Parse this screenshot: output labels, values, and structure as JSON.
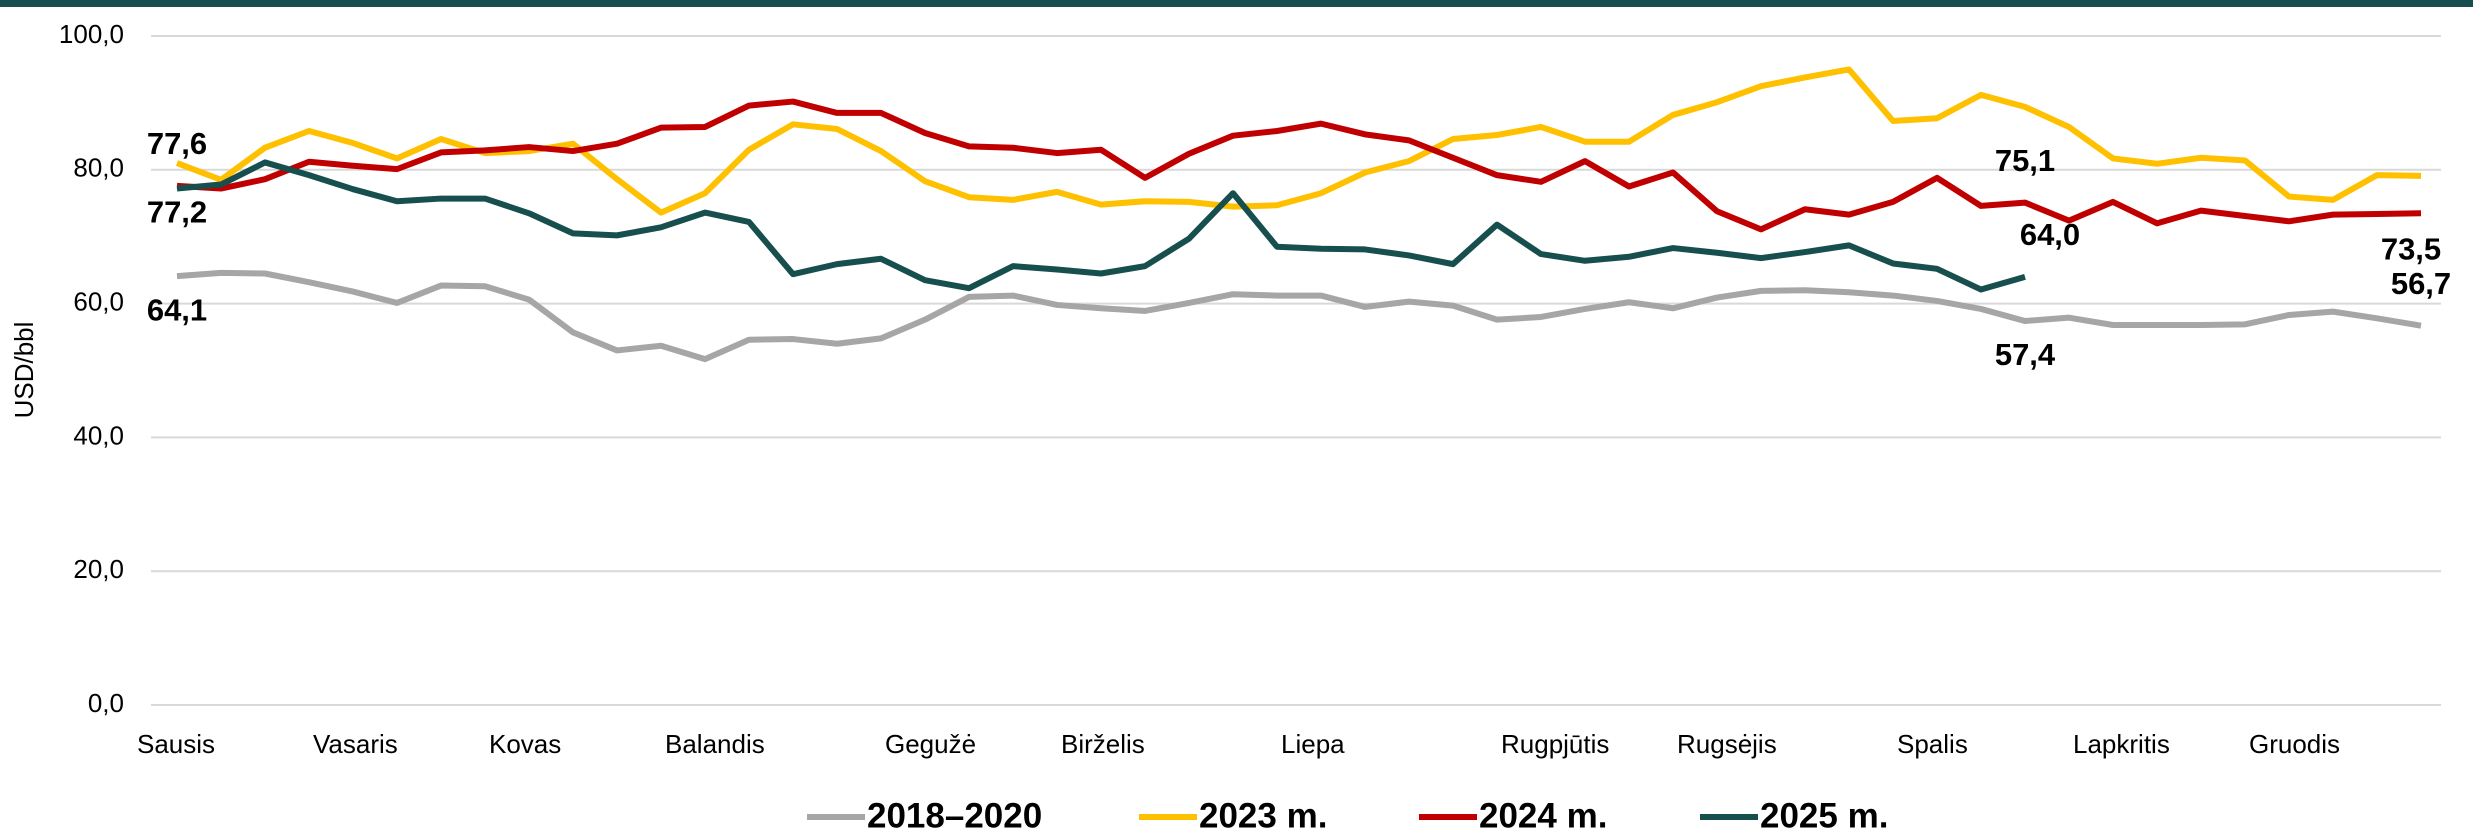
{
  "chart_data": {
    "type": "line",
    "y_label": "USD/bbl",
    "categories": [
      "Sausis",
      null,
      null,
      null,
      "Vasaris",
      null,
      null,
      null,
      "Kovas",
      null,
      null,
      null,
      "Balandis",
      null,
      null,
      null,
      null,
      "Gegužė",
      null,
      null,
      null,
      "Birželis",
      null,
      null,
      null,
      null,
      "Liepa",
      null,
      null,
      null,
      null,
      "Rugpjūtis",
      null,
      null,
      null,
      "Rugsėjis",
      null,
      null,
      null,
      null,
      "Spalis",
      null,
      null,
      null,
      "Lapkritis",
      null,
      null,
      null,
      "Gruodis",
      null,
      null,
      null
    ],
    "ylim": [
      0,
      100
    ],
    "yticks": [
      {
        "value": 0,
        "label": "0,0"
      },
      {
        "value": 20,
        "label": "20,0"
      },
      {
        "value": 40,
        "label": "40,0"
      },
      {
        "value": 60,
        "label": "60,0"
      },
      {
        "value": 80,
        "label": "80,0"
      },
      {
        "value": 100,
        "label": "100,0"
      }
    ],
    "grid": true,
    "legend": "bottom",
    "series": [
      {
        "name": "2018–2020",
        "color": "#a6a6a6",
        "values": [
          64.1,
          64.6,
          64.5,
          63.2,
          61.8,
          60.1,
          62.7,
          62.6,
          60.6,
          55.7,
          53.0,
          53.7,
          51.7,
          54.6,
          54.7,
          54.0,
          54.8,
          57.6,
          61.0,
          61.2,
          59.8,
          59.3,
          58.9,
          60.1,
          61.4,
          61.2,
          61.2,
          59.5,
          60.3,
          59.7,
          57.6,
          58.0,
          59.2,
          60.2,
          59.3,
          60.9,
          61.9,
          62.0,
          61.7,
          61.2,
          60.4,
          59.2,
          57.4,
          57.9,
          56.8,
          56.8,
          56.8,
          56.9,
          58.3,
          58.8,
          57.8,
          56.7
        ],
        "value_labels": [
          "64,1",
          null,
          null,
          null,
          null,
          null,
          null,
          null,
          null,
          null,
          null,
          null,
          null,
          null,
          null,
          null,
          null,
          null,
          null,
          null,
          null,
          null,
          null,
          null,
          null,
          null,
          null,
          null,
          null,
          null,
          null,
          null,
          null,
          null,
          null,
          null,
          null,
          null,
          null,
          null,
          null,
          null,
          "57,4",
          null,
          null,
          null,
          null,
          null,
          null,
          null,
          null,
          "56,7"
        ]
      },
      {
        "name": "2023 m.",
        "color": "#ffc000",
        "values": [
          81.0,
          78.5,
          83.3,
          85.8,
          84.0,
          81.7,
          84.6,
          82.5,
          82.8,
          83.9,
          78.6,
          73.6,
          76.5,
          83.0,
          86.8,
          86.1,
          82.8,
          78.3,
          75.9,
          75.5,
          76.7,
          74.8,
          75.3,
          75.2,
          74.5,
          74.7,
          76.5,
          79.6,
          81.3,
          84.6,
          85.2,
          86.4,
          84.2,
          84.2,
          88.2,
          90.1,
          92.5,
          93.8,
          95.0,
          87.3,
          87.7,
          91.2,
          89.4,
          86.4,
          81.7,
          80.9,
          81.8,
          81.4,
          76.0,
          75.5,
          79.2,
          79.1
        ]
      },
      {
        "name": "2024 m.",
        "color": "#c00000",
        "values": [
          77.6,
          77.2,
          78.6,
          81.2,
          80.6,
          80.1,
          82.6,
          82.9,
          83.4,
          82.8,
          83.9,
          86.3,
          86.4,
          89.6,
          90.2,
          88.5,
          88.5,
          85.5,
          83.5,
          83.3,
          82.5,
          83.0,
          78.8,
          82.4,
          85.1,
          85.8,
          86.9,
          85.3,
          84.4,
          81.8,
          79.2,
          78.2,
          81.3,
          77.5,
          79.6,
          73.8,
          71.1,
          74.1,
          73.3,
          75.2,
          78.8,
          74.6,
          75.1,
          72.4,
          75.2,
          72.0,
          73.9,
          73.1,
          72.3,
          73.3,
          73.4,
          73.5
        ],
        "value_labels": [
          "77,6",
          null,
          null,
          null,
          null,
          null,
          null,
          null,
          null,
          null,
          null,
          null,
          null,
          null,
          null,
          null,
          null,
          null,
          null,
          null,
          null,
          null,
          null,
          null,
          null,
          null,
          null,
          null,
          null,
          null,
          null,
          null,
          null,
          null,
          null,
          null,
          null,
          null,
          null,
          null,
          null,
          null,
          "75,1",
          null,
          null,
          null,
          null,
          null,
          null,
          null,
          null,
          "73,5"
        ]
      },
      {
        "name": "2025 m.",
        "color": "#174f4f",
        "values": [
          77.2,
          77.8,
          81.1,
          79.2,
          77.1,
          75.3,
          75.7,
          75.7,
          73.5,
          70.5,
          70.2,
          71.4,
          73.6,
          72.2,
          64.4,
          65.9,
          66.7,
          63.5,
          62.3,
          65.6,
          65.1,
          64.5,
          65.6,
          69.7,
          76.5,
          68.5,
          68.2,
          68.1,
          67.2,
          65.9,
          71.8,
          67.4,
          66.4,
          67.0,
          68.3,
          67.6,
          66.8,
          67.7,
          68.7,
          66.0,
          65.2,
          62.1,
          64.0,
          null,
          null,
          null,
          null,
          null,
          null,
          null,
          null,
          null
        ],
        "value_labels": [
          "77,2",
          null,
          null,
          null,
          null,
          null,
          null,
          null,
          null,
          null,
          null,
          null,
          null,
          null,
          null,
          null,
          null,
          null,
          null,
          null,
          null,
          null,
          null,
          null,
          null,
          null,
          null,
          null,
          null,
          null,
          null,
          null,
          null,
          null,
          null,
          null,
          null,
          null,
          null,
          null,
          null,
          null,
          "64,0",
          null,
          null,
          null,
          null,
          null,
          null,
          null,
          null,
          null
        ]
      }
    ]
  }
}
